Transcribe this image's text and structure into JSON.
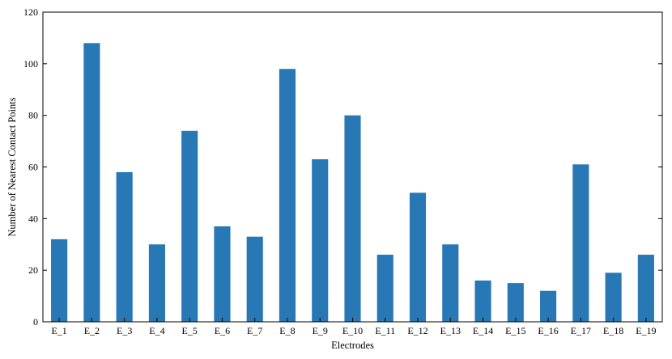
{
  "chart_data": {
    "type": "bar",
    "title": "",
    "xlabel": "Electrodes",
    "ylabel": "Number of Nearest Contact Points",
    "ylim": [
      0,
      120
    ],
    "yticks": [
      0,
      20,
      40,
      60,
      80,
      100,
      120
    ],
    "grid": false,
    "legend": "none",
    "bar_color": "#2878b5",
    "categories": [
      "E_1",
      "E_2",
      "E_3",
      "E_4",
      "E_5",
      "E_6",
      "E_7",
      "E_8",
      "E_9",
      "E_10",
      "E_11",
      "E_12",
      "E_13",
      "E_14",
      "E_15",
      "E_16",
      "E_17",
      "E_18",
      "E_19"
    ],
    "values": [
      32,
      108,
      58,
      30,
      74,
      37,
      33,
      98,
      63,
      80,
      26,
      50,
      30,
      16,
      15,
      12,
      61,
      19,
      26
    ]
  }
}
